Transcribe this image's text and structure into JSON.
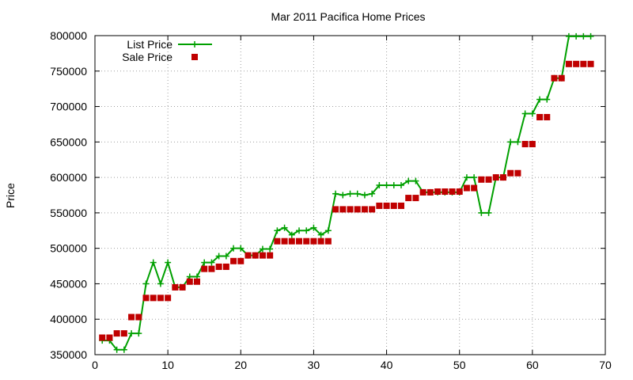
{
  "chart_data": {
    "type": "line",
    "title": "Mar 2011 Pacifica Home Prices",
    "xlabel": "",
    "ylabel": "Price",
    "xlim": [
      0,
      70
    ],
    "ylim": [
      350000,
      800000
    ],
    "xticks": [
      0,
      10,
      20,
      30,
      40,
      50,
      60,
      70
    ],
    "yticks": [
      350000,
      400000,
      450000,
      500000,
      550000,
      600000,
      650000,
      700000,
      750000,
      800000
    ],
    "grid": true,
    "legend": "top-left",
    "series": [
      {
        "name": "List Price",
        "style": "lines+crosses",
        "color": "#00a000",
        "x": [
          1,
          2,
          3,
          4,
          5,
          6,
          7,
          8,
          9,
          10,
          11,
          12,
          13,
          14,
          15,
          16,
          17,
          18,
          19,
          20,
          21,
          22,
          23,
          24,
          25,
          26,
          27,
          28,
          29,
          30,
          31,
          32,
          33,
          34,
          35,
          36,
          37,
          38,
          39,
          40,
          41,
          42,
          43,
          44,
          45,
          46,
          47,
          48,
          49,
          50,
          51,
          52,
          53,
          54,
          55,
          56,
          57,
          58,
          59,
          60,
          61,
          62,
          63,
          64,
          65,
          66,
          67,
          68
        ],
        "y": [
          370000,
          370000,
          357000,
          357000,
          380000,
          380000,
          450000,
          480000,
          450000,
          480000,
          445000,
          445000,
          460000,
          460000,
          480000,
          480000,
          489000,
          489000,
          500000,
          500000,
          490000,
          490000,
          499000,
          499000,
          525000,
          529000,
          519000,
          525000,
          525000,
          529000,
          519000,
          525000,
          577000,
          575000,
          577000,
          577000,
          575000,
          577000,
          589000,
          589000,
          589000,
          589000,
          595000,
          595000,
          579000,
          579000,
          579000,
          579000,
          579000,
          579000,
          600000,
          600000,
          550000,
          550000,
          600000,
          600000,
          650000,
          650000,
          690000,
          690000,
          710000,
          710000,
          740000,
          740000,
          799000,
          799000,
          799000,
          799000
        ]
      },
      {
        "name": "Sale Price",
        "style": "squares",
        "color": "#c00000",
        "x": [
          1,
          2,
          3,
          4,
          5,
          6,
          7,
          8,
          9,
          10,
          11,
          12,
          13,
          14,
          15,
          16,
          17,
          18,
          19,
          20,
          21,
          22,
          23,
          24,
          25,
          26,
          27,
          28,
          29,
          30,
          31,
          32,
          33,
          34,
          35,
          36,
          37,
          38,
          39,
          40,
          41,
          42,
          43,
          44,
          45,
          46,
          47,
          48,
          49,
          50,
          51,
          52,
          53,
          54,
          55,
          56,
          57,
          58,
          59,
          60,
          61,
          62,
          63,
          64,
          65,
          66,
          67,
          68
        ],
        "y": [
          374000,
          374000,
          380000,
          380000,
          403000,
          403000,
          430000,
          430000,
          430000,
          430000,
          445000,
          445000,
          453000,
          453000,
          471000,
          471000,
          474000,
          474000,
          482000,
          482000,
          490000,
          490000,
          490000,
          490000,
          510000,
          510000,
          510000,
          510000,
          510000,
          510000,
          510000,
          510000,
          555000,
          555000,
          555000,
          555000,
          555000,
          555000,
          560000,
          560000,
          560000,
          560000,
          571000,
          571000,
          579000,
          579000,
          580000,
          580000,
          580000,
          580000,
          585000,
          585000,
          597000,
          597000,
          600000,
          600000,
          606000,
          606000,
          647000,
          647000,
          685000,
          685000,
          740000,
          740000,
          760000,
          760000,
          760000,
          760000
        ]
      }
    ]
  }
}
